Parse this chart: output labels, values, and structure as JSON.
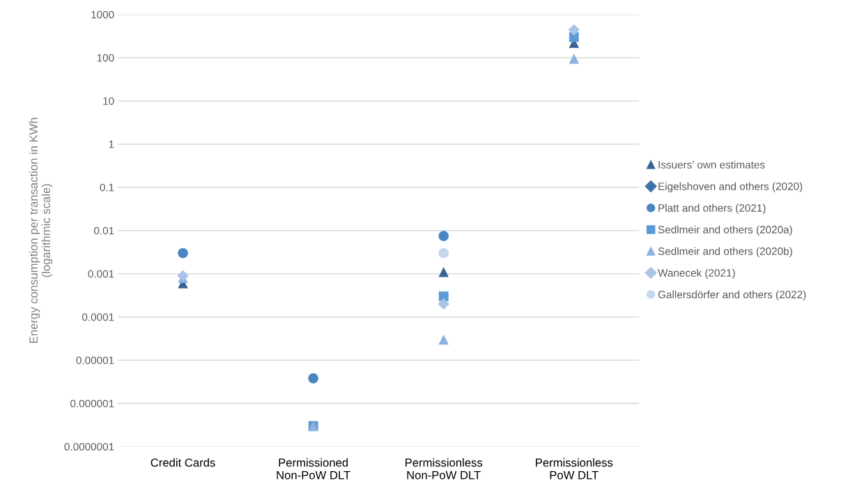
{
  "chart_data": {
    "type": "scatter",
    "ylabel": "Energy consumption per transaction in KWh\n(logarithmic scale)",
    "categories": [
      "Credit Cards",
      "Permissioned\nNon-PoW DLT",
      "Permissionless\nNon-PoW DLT",
      "Permissionless\nPoW DLT"
    ],
    "log": "y",
    "grid": "y",
    "legend": "right",
    "ylim": [
      1e-07,
      1000
    ],
    "yticks": [
      {
        "value": 1e-07,
        "label": "0.0000001"
      },
      {
        "value": 1e-06,
        "label": "0.000001"
      },
      {
        "value": 1e-05,
        "label": "0.00001"
      },
      {
        "value": 0.0001,
        "label": "0.0001"
      },
      {
        "value": 0.001,
        "label": "0.001"
      },
      {
        "value": 0.01,
        "label": "0.01"
      },
      {
        "value": 0.1,
        "label": "0.1"
      },
      {
        "value": 1,
        "label": "1"
      },
      {
        "value": 10,
        "label": "10"
      },
      {
        "value": 100,
        "label": "100"
      },
      {
        "value": 1000,
        "label": "1000"
      }
    ],
    "series": [
      {
        "name": "Issuers’ own estimates",
        "color": "#3a6592",
        "marker": "triangle",
        "values": [
          0.0006,
          null,
          0.0011,
          220
        ]
      },
      {
        "name": "Eigelshoven and others (2020)",
        "color": "#4072aa",
        "marker": "diamond",
        "values": [
          null,
          null,
          null,
          null
        ]
      },
      {
        "name": "Platt and others (2021)",
        "color": "#4a87c2",
        "marker": "circle",
        "values": [
          0.003,
          3.8e-06,
          0.0075,
          null
        ]
      },
      {
        "name": "Sedlmeir and others (2020a)",
        "color": "#5b9bd5",
        "marker": "square",
        "values": [
          null,
          3e-07,
          0.0003,
          300
        ]
      },
      {
        "name": "Sedlmeir and others (2020b)",
        "color": "#8db1de",
        "marker": "triangle",
        "values": [
          0.0008,
          3e-07,
          3e-05,
          95
        ]
      },
      {
        "name": "Wanecek (2021)",
        "color": "#a9c4e6",
        "marker": "diamond",
        "values": [
          0.0009,
          null,
          0.0002,
          440
        ]
      },
      {
        "name": "Gallersdörfer and others (2022)",
        "color": "#c5d7ee",
        "marker": "circle",
        "values": [
          null,
          null,
          0.003,
          null
        ]
      }
    ]
  }
}
